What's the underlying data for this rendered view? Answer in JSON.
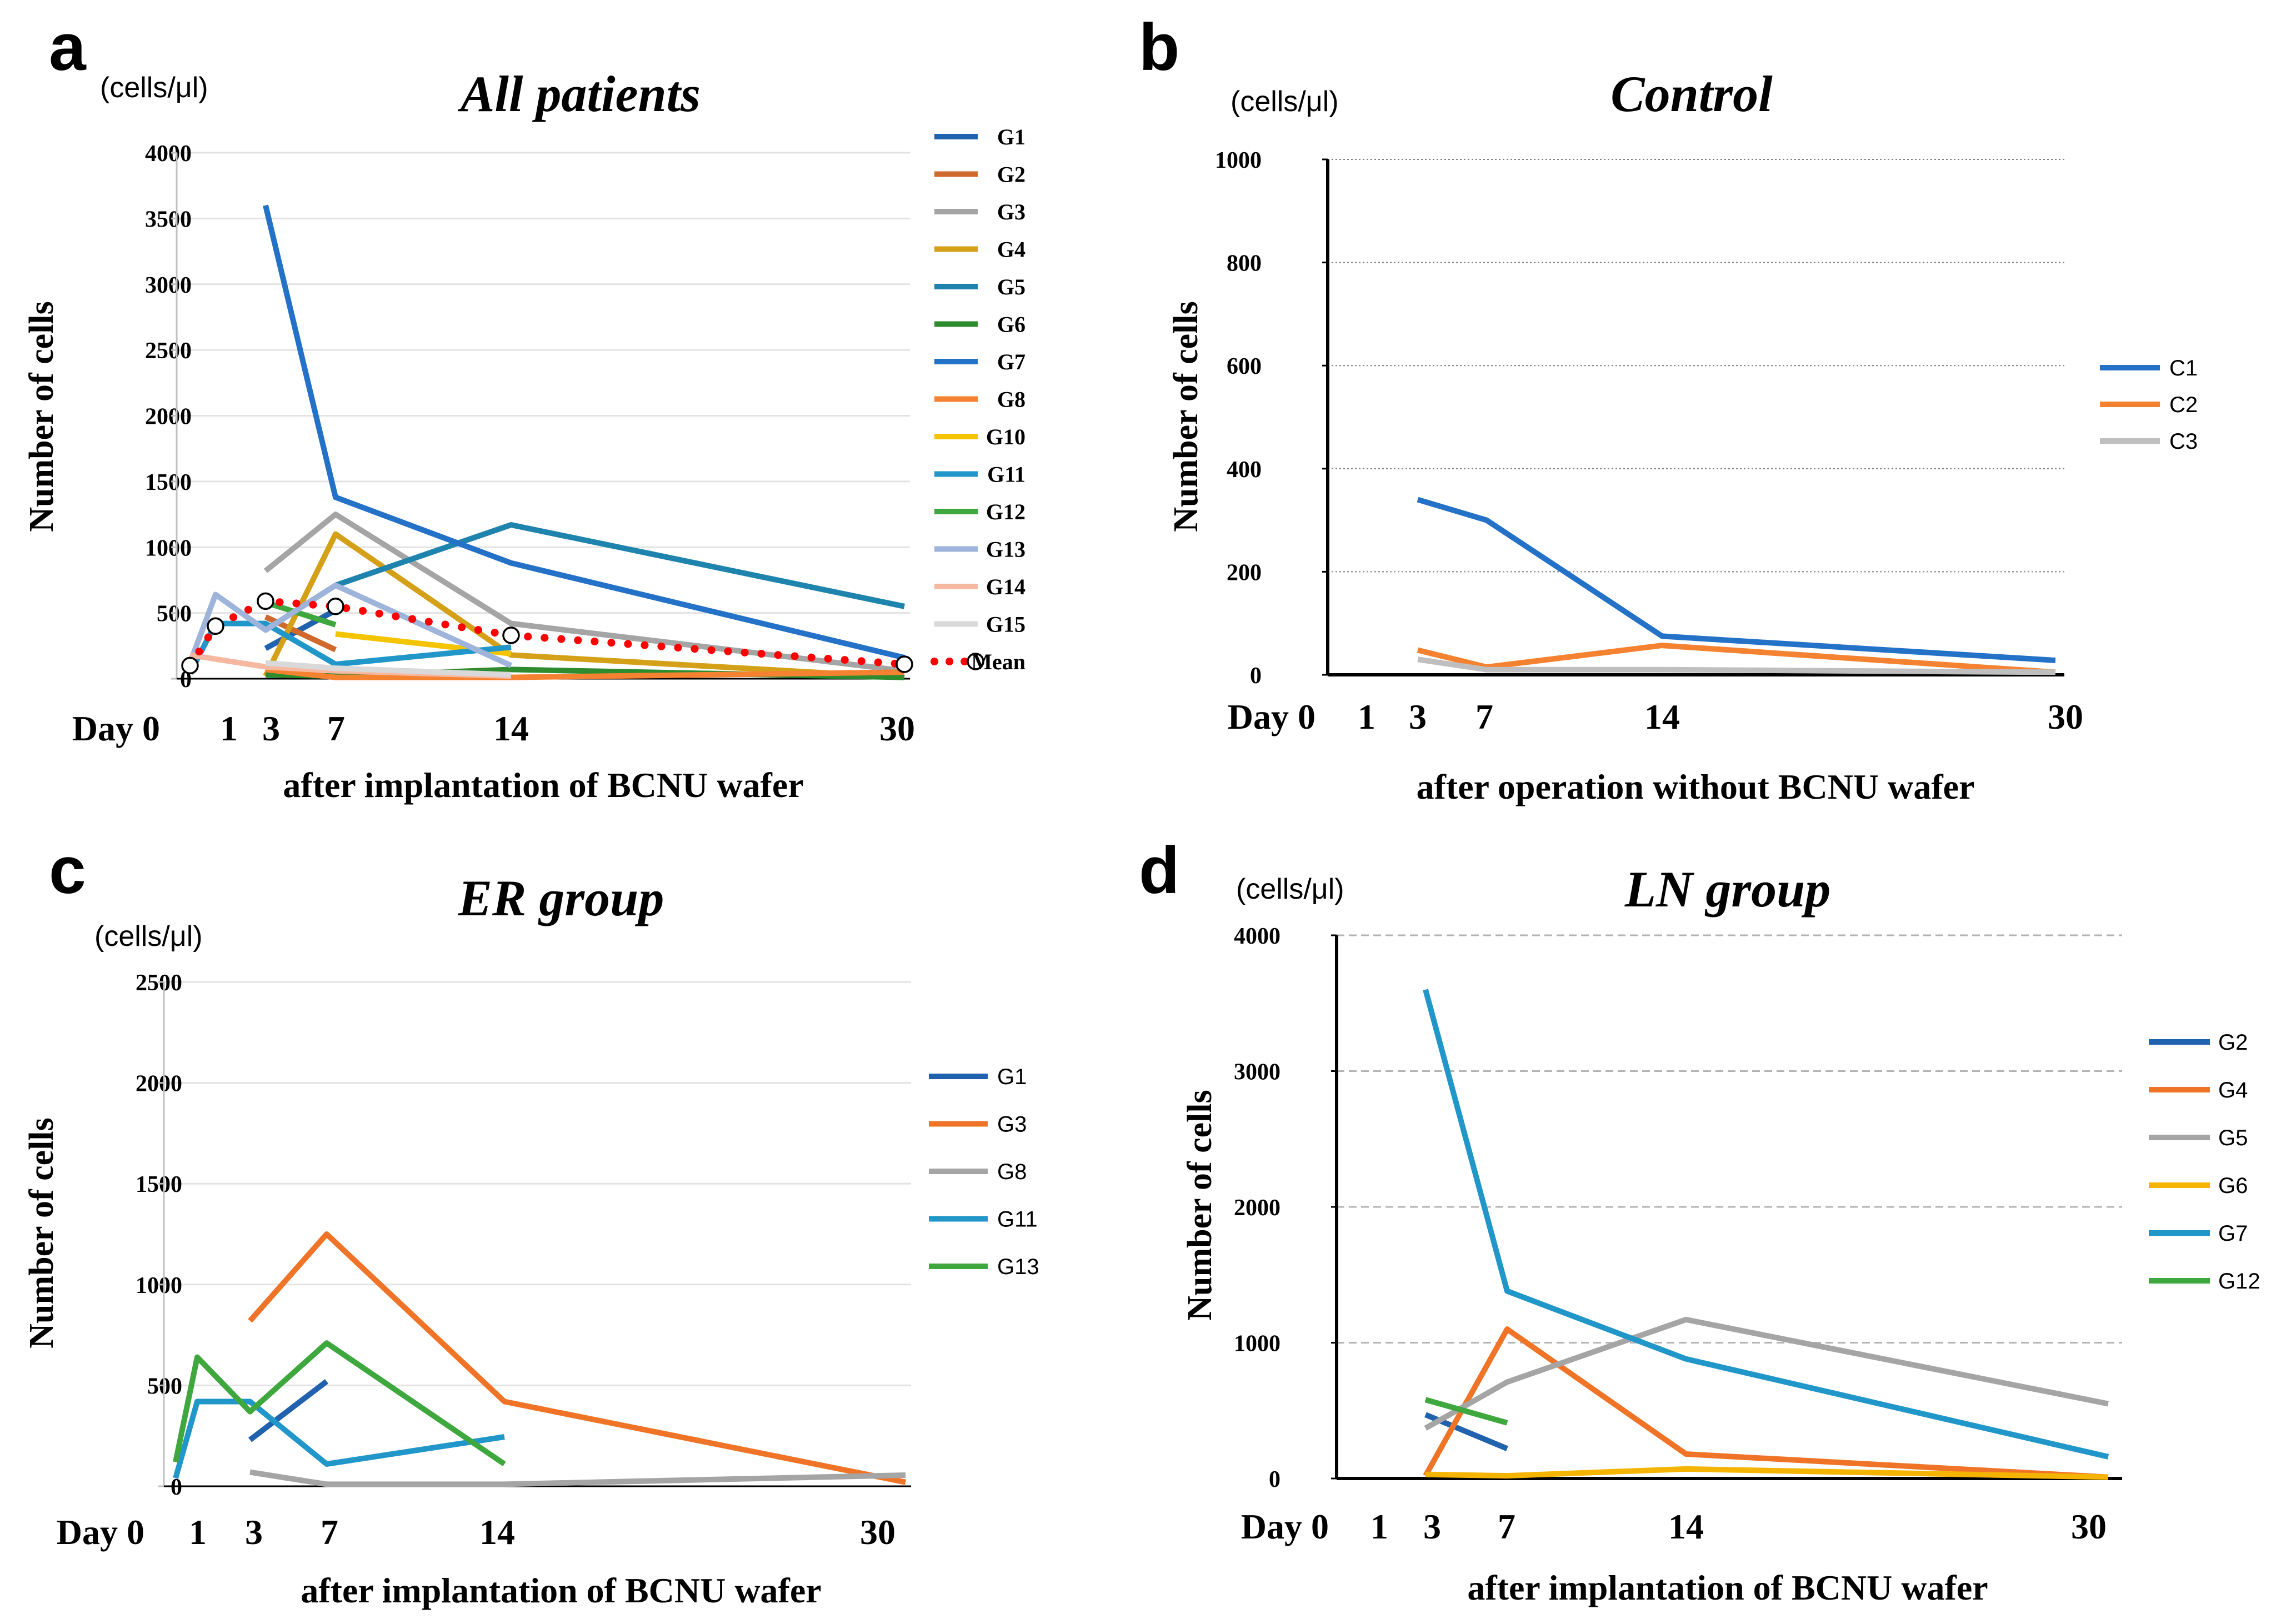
{
  "chart_data": [
    {
      "id": "a",
      "panel_label": "a",
      "type": "line",
      "title": "All patients",
      "unit": "(cells/μl)",
      "ylabel": "Number of cells",
      "xlabel": "after implantation of BCNU wafer",
      "ylim": [
        0,
        4000
      ],
      "yticks": [
        0,
        500,
        1000,
        1500,
        2000,
        2500,
        3000,
        3500,
        4000
      ],
      "xlim": [
        0,
        30
      ],
      "xtick_labels": [
        {
          "x": 0,
          "label": "Day 0"
        },
        {
          "x": 1,
          "label": "1"
        },
        {
          "x": 3,
          "label": "3"
        },
        {
          "x": 7,
          "label": "7"
        },
        {
          "x": 14,
          "label": "14"
        },
        {
          "x": 30,
          "label": "30"
        }
      ],
      "gridlines": "horizontal-solid-light",
      "legend_style": "bold",
      "series": [
        {
          "name": "G1",
          "color": "#2062ad",
          "points": [
            [
              3,
              230
            ],
            [
              7,
              520
            ]
          ]
        },
        {
          "name": "G2",
          "color": "#d06a2c",
          "points": [
            [
              3,
              470
            ],
            [
              7,
              220
            ]
          ]
        },
        {
          "name": "G3",
          "color": "#a5a5a5",
          "points": [
            [
              3,
              820
            ],
            [
              7,
              1250
            ],
            [
              14,
              420
            ],
            [
              30,
              60
            ]
          ]
        },
        {
          "name": "G4",
          "color": "#d4a017",
          "points": [
            [
              3,
              20
            ],
            [
              7,
              1100
            ],
            [
              14,
              180
            ],
            [
              30,
              10
            ]
          ]
        },
        {
          "name": "G5",
          "color": "#1f84ad",
          "points": [
            [
              3,
              370
            ],
            [
              7,
              710
            ],
            [
              14,
              1170
            ],
            [
              30,
              550
            ]
          ]
        },
        {
          "name": "G6",
          "color": "#2e8b2e",
          "points": [
            [
              3,
              30
            ],
            [
              7,
              20
            ],
            [
              14,
              70
            ],
            [
              30,
              10
            ]
          ]
        },
        {
          "name": "G7",
          "color": "#2471c8",
          "points": [
            [
              3,
              3600
            ],
            [
              7,
              1380
            ],
            [
              14,
              880
            ],
            [
              30,
              160
            ]
          ]
        },
        {
          "name": "G8",
          "color": "#f58231",
          "points": [
            [
              3,
              70
            ],
            [
              7,
              10
            ],
            [
              14,
              10
            ],
            [
              30,
              50
            ]
          ]
        },
        {
          "name": "G10",
          "color": "#f5c400",
          "points": [
            [
              7,
              340
            ],
            [
              14,
              190
            ]
          ]
        },
        {
          "name": "G11",
          "color": "#2196c9",
          "points": [
            [
              0,
              40
            ],
            [
              1,
              420
            ],
            [
              3,
              420
            ],
            [
              7,
              110
            ],
            [
              14,
              240
            ]
          ]
        },
        {
          "name": "G12",
          "color": "#3ea83e",
          "points": [
            [
              3,
              580
            ],
            [
              7,
              410
            ]
          ]
        },
        {
          "name": "G13",
          "color": "#9fb4db",
          "points": [
            [
              0,
              120
            ],
            [
              1,
              640
            ],
            [
              3,
              370
            ],
            [
              7,
              710
            ],
            [
              14,
              100
            ]
          ]
        },
        {
          "name": "G14",
          "color": "#f7b8a2",
          "points": [
            [
              0,
              180
            ],
            [
              3,
              90
            ],
            [
              7,
              60
            ],
            [
              14,
              20
            ]
          ]
        },
        {
          "name": "G15",
          "color": "#d9d9d9",
          "points": [
            [
              3,
              120
            ],
            [
              7,
              80
            ],
            [
              14,
              30
            ]
          ]
        },
        {
          "name": "Mean",
          "color": "#ff0000",
          "style": "dotted-with-circles",
          "points": [
            [
              0,
              100
            ],
            [
              1,
              400
            ],
            [
              3,
              590
            ],
            [
              7,
              550
            ],
            [
              14,
              330
            ],
            [
              30,
              110
            ]
          ]
        }
      ]
    },
    {
      "id": "b",
      "panel_label": "b",
      "type": "line",
      "title": "Control",
      "unit": "(cells/μl)",
      "ylabel": "Number of cells",
      "xlabel": "after operation without BCNU wafer",
      "ylim": [
        0,
        1000
      ],
      "yticks": [
        0,
        200,
        400,
        600,
        800,
        1000
      ],
      "xlim": [
        0,
        30
      ],
      "xtick_labels": [
        {
          "x": 0,
          "label": "Day 0"
        },
        {
          "x": 1,
          "label": "1"
        },
        {
          "x": 3,
          "label": "3"
        },
        {
          "x": 7,
          "label": "7"
        },
        {
          "x": 14,
          "label": "14"
        },
        {
          "x": 30,
          "label": "30"
        }
      ],
      "gridlines": "horizontal-dotted",
      "legend_style": "plain",
      "series": [
        {
          "name": "C1",
          "color": "#2471c8",
          "points": [
            [
              3,
              340
            ],
            [
              7,
              300
            ],
            [
              14,
              75
            ],
            [
              30,
              28
            ]
          ]
        },
        {
          "name": "C2",
          "color": "#f58231",
          "points": [
            [
              3,
              48
            ],
            [
              7,
              15
            ],
            [
              14,
              57
            ],
            [
              30,
              5
            ]
          ]
        },
        {
          "name": "C3",
          "color": "#bfbfbf",
          "points": [
            [
              3,
              30
            ],
            [
              7,
              10
            ],
            [
              14,
              10
            ],
            [
              30,
              5
            ]
          ]
        }
      ]
    },
    {
      "id": "c",
      "panel_label": "c",
      "type": "line",
      "title": "ER group",
      "unit": "(cells/μl)",
      "ylabel": "Number of cells",
      "xlabel": "after implantation of BCNU wafer",
      "ylim": [
        0,
        2500
      ],
      "yticks": [
        0,
        500,
        1000,
        1500,
        2000,
        2500
      ],
      "xlim": [
        0,
        30
      ],
      "xtick_labels": [
        {
          "x": 0,
          "label": "Day 0"
        },
        {
          "x": 1,
          "label": "1"
        },
        {
          "x": 3,
          "label": "3"
        },
        {
          "x": 7,
          "label": "7"
        },
        {
          "x": 14,
          "label": "14"
        },
        {
          "x": 30,
          "label": "30"
        }
      ],
      "gridlines": "horizontal-solid-light",
      "legend_style": "plain",
      "series": [
        {
          "name": "G1",
          "color": "#2062ad",
          "points": [
            [
              3,
              230
            ],
            [
              7,
              520
            ]
          ]
        },
        {
          "name": "G3",
          "color": "#f07427",
          "points": [
            [
              3,
              820
            ],
            [
              7,
              1250
            ],
            [
              14,
              420
            ],
            [
              30,
              20
            ]
          ]
        },
        {
          "name": "G8",
          "color": "#a5a5a5",
          "points": [
            [
              3,
              70
            ],
            [
              7,
              10
            ],
            [
              14,
              10
            ],
            [
              30,
              55
            ]
          ]
        },
        {
          "name": "G11",
          "color": "#2196c9",
          "points": [
            [
              0,
              40
            ],
            [
              1,
              420
            ],
            [
              3,
              420
            ],
            [
              7,
              110
            ],
            [
              14,
              245
            ]
          ]
        },
        {
          "name": "G13",
          "color": "#3ea83e",
          "points": [
            [
              0,
              120
            ],
            [
              1,
              640
            ],
            [
              3,
              370
            ],
            [
              7,
              710
            ],
            [
              14,
              110
            ]
          ]
        }
      ]
    },
    {
      "id": "d",
      "panel_label": "d",
      "type": "line",
      "title": "LN group",
      "unit": "(cells/μl)",
      "ylabel": "Number of cells",
      "xlabel": "after implantation of BCNU wafer",
      "ylim": [
        0,
        4000
      ],
      "yticks": [
        0,
        1000,
        2000,
        3000,
        4000
      ],
      "xlim": [
        0,
        30
      ],
      "xtick_labels": [
        {
          "x": 0,
          "label": "Day 0"
        },
        {
          "x": 1,
          "label": "1"
        },
        {
          "x": 3,
          "label": "3"
        },
        {
          "x": 7,
          "label": "7"
        },
        {
          "x": 14,
          "label": "14"
        },
        {
          "x": 30,
          "label": "30"
        }
      ],
      "gridlines": "horizontal-dashed",
      "legend_style": "plain",
      "series": [
        {
          "name": "G2",
          "color": "#2062ad",
          "points": [
            [
              3,
              470
            ],
            [
              7,
              220
            ]
          ]
        },
        {
          "name": "G4",
          "color": "#f07427",
          "points": [
            [
              3,
              20
            ],
            [
              7,
              1100
            ],
            [
              14,
              180
            ],
            [
              30,
              10
            ]
          ]
        },
        {
          "name": "G5",
          "color": "#a5a5a5",
          "points": [
            [
              3,
              370
            ],
            [
              7,
              710
            ],
            [
              14,
              1170
            ],
            [
              30,
              550
            ]
          ]
        },
        {
          "name": "G6",
          "color": "#f5b400",
          "points": [
            [
              3,
              30
            ],
            [
              7,
              20
            ],
            [
              14,
              70
            ],
            [
              30,
              10
            ]
          ]
        },
        {
          "name": "G7",
          "color": "#2196c9",
          "points": [
            [
              3,
              3600
            ],
            [
              7,
              1380
            ],
            [
              14,
              880
            ],
            [
              30,
              160
            ]
          ]
        },
        {
          "name": "G12",
          "color": "#3ea83e",
          "points": [
            [
              3,
              580
            ],
            [
              7,
              410
            ]
          ]
        }
      ]
    }
  ]
}
